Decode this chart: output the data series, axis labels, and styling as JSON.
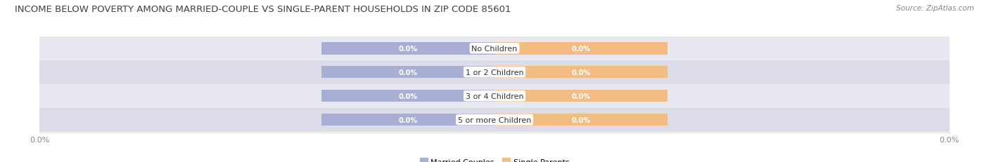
{
  "title": "INCOME BELOW POVERTY AMONG MARRIED-COUPLE VS SINGLE-PARENT HOUSEHOLDS IN ZIP CODE 85601",
  "source": "Source: ZipAtlas.com",
  "categories": [
    "No Children",
    "1 or 2 Children",
    "3 or 4 Children",
    "5 or more Children"
  ],
  "married_values": [
    0.0,
    0.0,
    0.0,
    0.0
  ],
  "single_values": [
    0.0,
    0.0,
    0.0,
    0.0
  ],
  "married_color": "#a8aed4",
  "single_color": "#f2bc82",
  "row_bg_even": "#e8e8f0",
  "row_bg_odd": "#dcdce8",
  "title_fontsize": 9.5,
  "source_fontsize": 7.5,
  "label_fontsize": 7,
  "category_fontsize": 8,
  "legend_fontsize": 8,
  "background_color": "#ffffff",
  "tick_label_color": "#888888",
  "tick_fontsize": 8
}
